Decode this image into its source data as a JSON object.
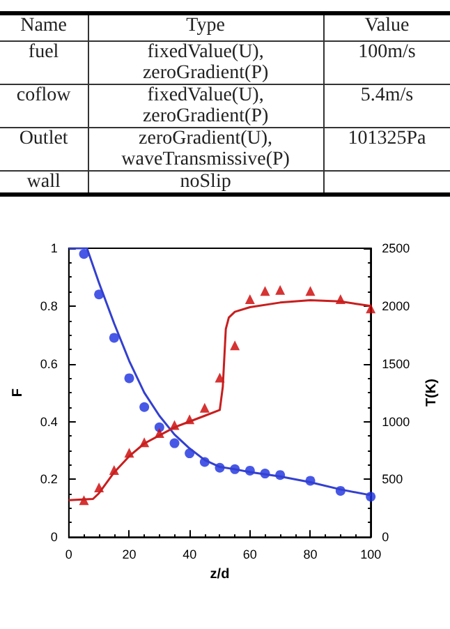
{
  "chart_data": [
    {
      "type": "other",
      "categories": [
        "Name",
        "Type",
        "Value"
      ],
      "cell_labels": [
        [
          "fuel",
          "fixedValue(U), zeroGradient(P)",
          "100m/s"
        ],
        [
          "coflow",
          "fixedValue(U), zeroGradient(P)",
          "5.4m/s"
        ],
        [
          "Outlet",
          "zeroGradient(U), waveTransmissive(P)",
          "101325Pa"
        ],
        [
          "wall",
          "noSlip",
          null
        ]
      ]
    },
    {
      "type": "line",
      "xlabel": "z/d",
      "ylabel": "F",
      "y2label": "T(K)",
      "xlim": [
        0,
        100
      ],
      "xticks": [
        0,
        20,
        40,
        60,
        80,
        100
      ],
      "ylim": [
        0,
        1
      ],
      "yticks": [
        0,
        0.2,
        0.4,
        0.6,
        0.8,
        1
      ],
      "y2lim": [
        0,
        2500
      ],
      "y2ticks": [
        0,
        500,
        1000,
        1500,
        2000,
        2500
      ],
      "series": [
        {
          "type": "line",
          "color": "#3340d0",
          "marker": "none",
          "x": [
            0,
            6,
            10,
            15,
            20,
            25,
            30,
            35,
            40,
            45,
            50,
            55,
            60,
            70,
            80,
            90,
            100
          ],
          "values": [
            1,
            1,
            0.88,
            0.74,
            0.61,
            0.5,
            0.42,
            0.355,
            0.307,
            0.267,
            0.243,
            0.235,
            0.225,
            0.21,
            0.19,
            0.165,
            0.145
          ]
        },
        {
          "type": "scatter",
          "color": "#1a2ee0",
          "marker": "circle",
          "x": [
            5,
            10,
            15,
            20,
            25,
            30,
            35,
            40,
            45,
            50,
            55,
            60,
            65,
            70,
            80,
            90,
            100
          ],
          "values": [
            0.98,
            0.84,
            0.69,
            0.55,
            0.45,
            0.38,
            0.325,
            0.29,
            0.26,
            0.24,
            0.235,
            0.23,
            0.22,
            0.215,
            0.195,
            0.16,
            0.14
          ]
        },
        {
          "type": "line",
          "axis": "y2",
          "color": "#c81e1e",
          "marker": "none",
          "x": [
            0,
            8,
            10,
            15,
            20,
            25,
            30,
            35,
            40,
            45,
            50,
            51,
            52,
            53,
            55,
            60,
            70,
            80,
            90,
            100
          ],
          "values": [
            320,
            330,
            380,
            560,
            700,
            810,
            880,
            950,
            1000,
            1050,
            1100,
            1300,
            1800,
            1900,
            1950,
            1990,
            2030,
            2050,
            2040,
            2000
          ]
        },
        {
          "type": "scatter",
          "axis": "y2",
          "color": "#cc0000",
          "marker": "triangle",
          "x": [
            5,
            10,
            15,
            20,
            25,
            30,
            35,
            40,
            45,
            50,
            55,
            60,
            65,
            70,
            80,
            90,
            100
          ],
          "values": [
            320,
            430,
            580,
            730,
            820,
            900,
            970,
            1020,
            1120,
            1380,
            1660,
            2060,
            2130,
            2140,
            2130,
            2060,
            1980
          ]
        }
      ]
    }
  ]
}
